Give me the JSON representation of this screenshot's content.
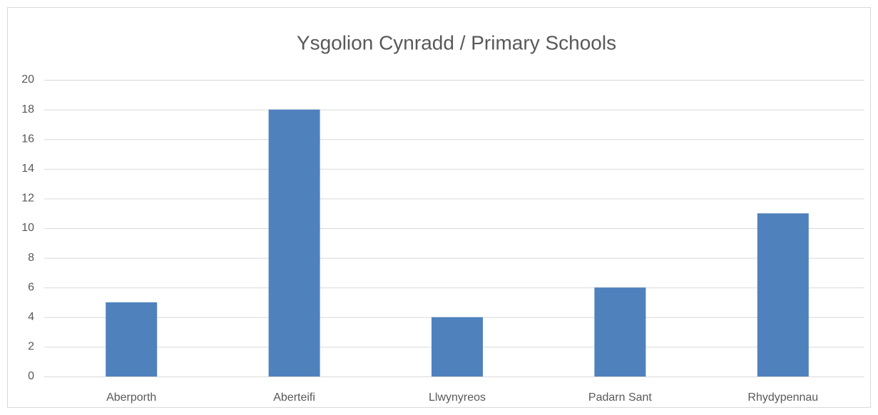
{
  "chart_data": {
    "type": "bar",
    "title": "Ysgolion Cynradd / Primary Schools",
    "categories": [
      "Aberporth",
      "Aberteifi",
      "Llwynyreos",
      "Padarn Sant",
      "Rhydypennau"
    ],
    "values": [
      5,
      18,
      4,
      6,
      11
    ],
    "color": "#4f81bd",
    "ylim": [
      0,
      20
    ],
    "yticks": [
      0,
      2,
      4,
      6,
      8,
      10,
      12,
      14,
      16,
      18,
      20
    ],
    "grid": true
  }
}
